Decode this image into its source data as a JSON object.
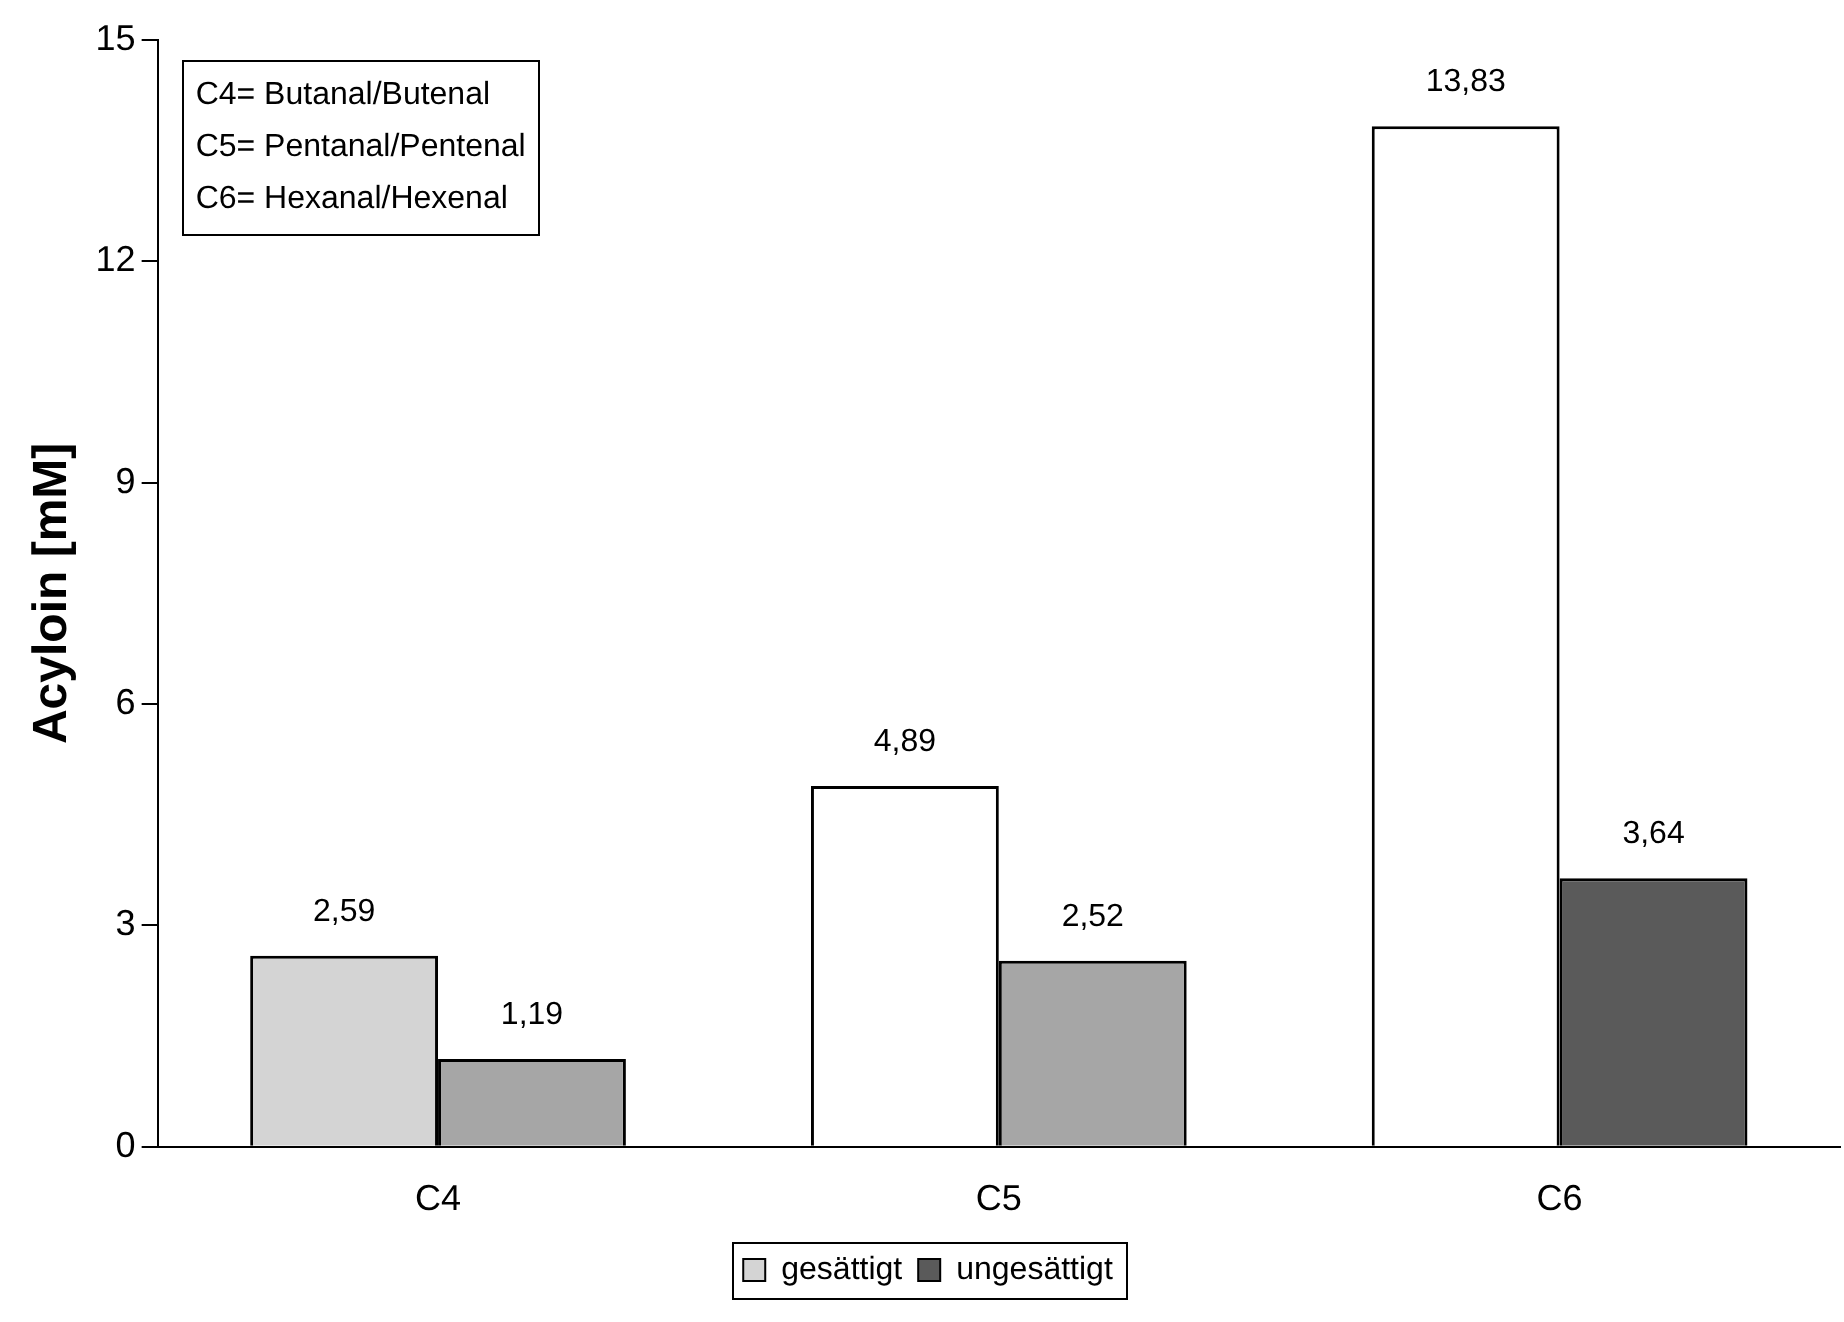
{
  "chart_data": {
    "type": "bar",
    "ylabel": "Acyloin [mM]",
    "categories": [
      "C4",
      "C5",
      "C6"
    ],
    "series": [
      {
        "name": "gesättigt",
        "color": "#d4d4d4",
        "colors": [
          "#d4d4d4",
          "#ffffff",
          "#ffffff"
        ],
        "values": [
          2.59,
          4.89,
          13.83
        ],
        "value_labels": [
          "2,59",
          "4,89",
          "13,83"
        ]
      },
      {
        "name": "ungesättigt",
        "color": "#5a5a5a",
        "colors": [
          "#a6a6a6",
          "#a6a6a6",
          "#5a5a5a"
        ],
        "values": [
          1.19,
          2.52,
          3.64
        ],
        "value_labels": [
          "1,19",
          "2,52",
          "3,64"
        ]
      }
    ],
    "ylim": [
      0,
      15
    ],
    "yticks": [
      0,
      3,
      6,
      9,
      12,
      15
    ],
    "grid": false,
    "legend": "bottom",
    "annotations": [
      "C4= Butanal/Butenal",
      "C5= Pentanal/Pentenal",
      "C6= Hexanal/Hexenal"
    ]
  }
}
